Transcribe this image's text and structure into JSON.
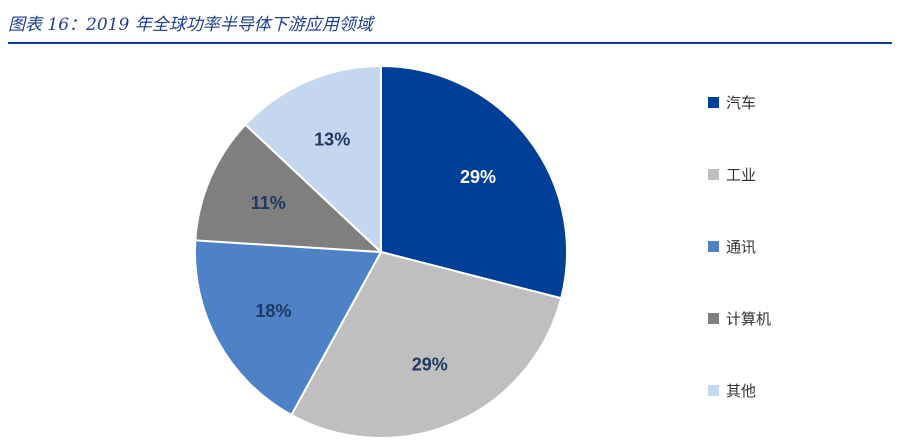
{
  "title": "图表 16：2019 年全球功率半导体下游应用领域",
  "chart_data": {
    "type": "pie",
    "title": "",
    "categories": [
      "汽车",
      "工业",
      "通讯",
      "计算机",
      "其他"
    ],
    "values": [
      29,
      29,
      18,
      11,
      13
    ],
    "value_labels": [
      "29%",
      "29%",
      "18%",
      "11%",
      "13%"
    ],
    "colors": [
      "#003f98",
      "#bfbfbf",
      "#4f81c7",
      "#7f7f7f",
      "#c5d7ee"
    ],
    "label_colors": [
      "#ffffff",
      "#1f3864",
      "#1f3864",
      "#1f3864",
      "#1f3864"
    ],
    "start_angle": "12 o'clock",
    "direction": "clockwise",
    "legend_position": "right"
  }
}
